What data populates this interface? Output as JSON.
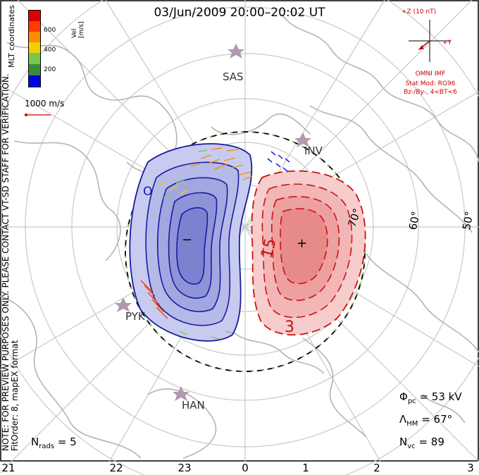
{
  "title": "03/Jun/2009 20:00–20:02 UT",
  "time_axis": {
    "ticks": [
      "21",
      "22",
      "23",
      "0",
      "1",
      "2",
      "3"
    ]
  },
  "latitude_labels": [
    "70°",
    "60°",
    "50°"
  ],
  "stations": [
    "SAS",
    "INV",
    "PYK",
    "HAN"
  ],
  "colorbar": {
    "title": "Vel [m/s]",
    "ticks": [
      "600",
      "400",
      "200"
    ],
    "colors": [
      "#0000e0",
      "#3c8c3c",
      "#78c850",
      "#f0d000",
      "#ff8c00",
      "#ff3c00",
      "#dd0000"
    ]
  },
  "coordinates_label": "MLT coordinates",
  "velocity_reference": "1000 m/s",
  "imf": {
    "scale_label": "+Z (10 nT)",
    "y_label": "+Y",
    "source": "OMNI IMF",
    "stat_model": "Stat Mod: RG96",
    "condition": "Bz-/By-, 4<BT<6"
  },
  "note_line1": "NOTE: FOR PREVIEW PURPOSES ONLY. PLEASE CONTACT VT-SD STAFF FOR VERIFICATION.",
  "note_line2": "FitOrder: 8, mapEX format",
  "stats": {
    "phi_pc_sym": "Φ",
    "phi_pc_sub": "pc",
    "phi_pc_value": "= 53 kV",
    "lambda_sym": "Λ",
    "lambda_sub": "HM",
    "lambda_value": "= 67°",
    "nvc_sym": "N",
    "nvc_sub": "vc",
    "nvc_value": "= 89",
    "nrads_sym": "N",
    "nrads_sub": "rads",
    "nrads_value": "= 5"
  },
  "contour_labels": [
    "O",
    "15",
    "3"
  ],
  "cell_markers": [
    "−",
    "+"
  ],
  "colors": {
    "negative_cell": "#1a1aa0",
    "negative_fill": "#c8cbf0",
    "positive_cell": "#cc1111",
    "positive_fill": "#f7cccc",
    "grid": "#c8c8c8",
    "coast": "#b4b4b4",
    "imf": "#cc0000"
  },
  "chart_data": {
    "type": "map",
    "projection": "polar MLT",
    "time_range": "20:00-20:02 UT",
    "cross_polar_cap_potential_kV": 53,
    "heppner_maynard_boundary_deg": 67,
    "num_vectors": 89,
    "num_radars": 5,
    "mlt_ticks": [
      21,
      22,
      23,
      0,
      1,
      2,
      3
    ],
    "lat_circles_deg": [
      70,
      60,
      50
    ]
  }
}
